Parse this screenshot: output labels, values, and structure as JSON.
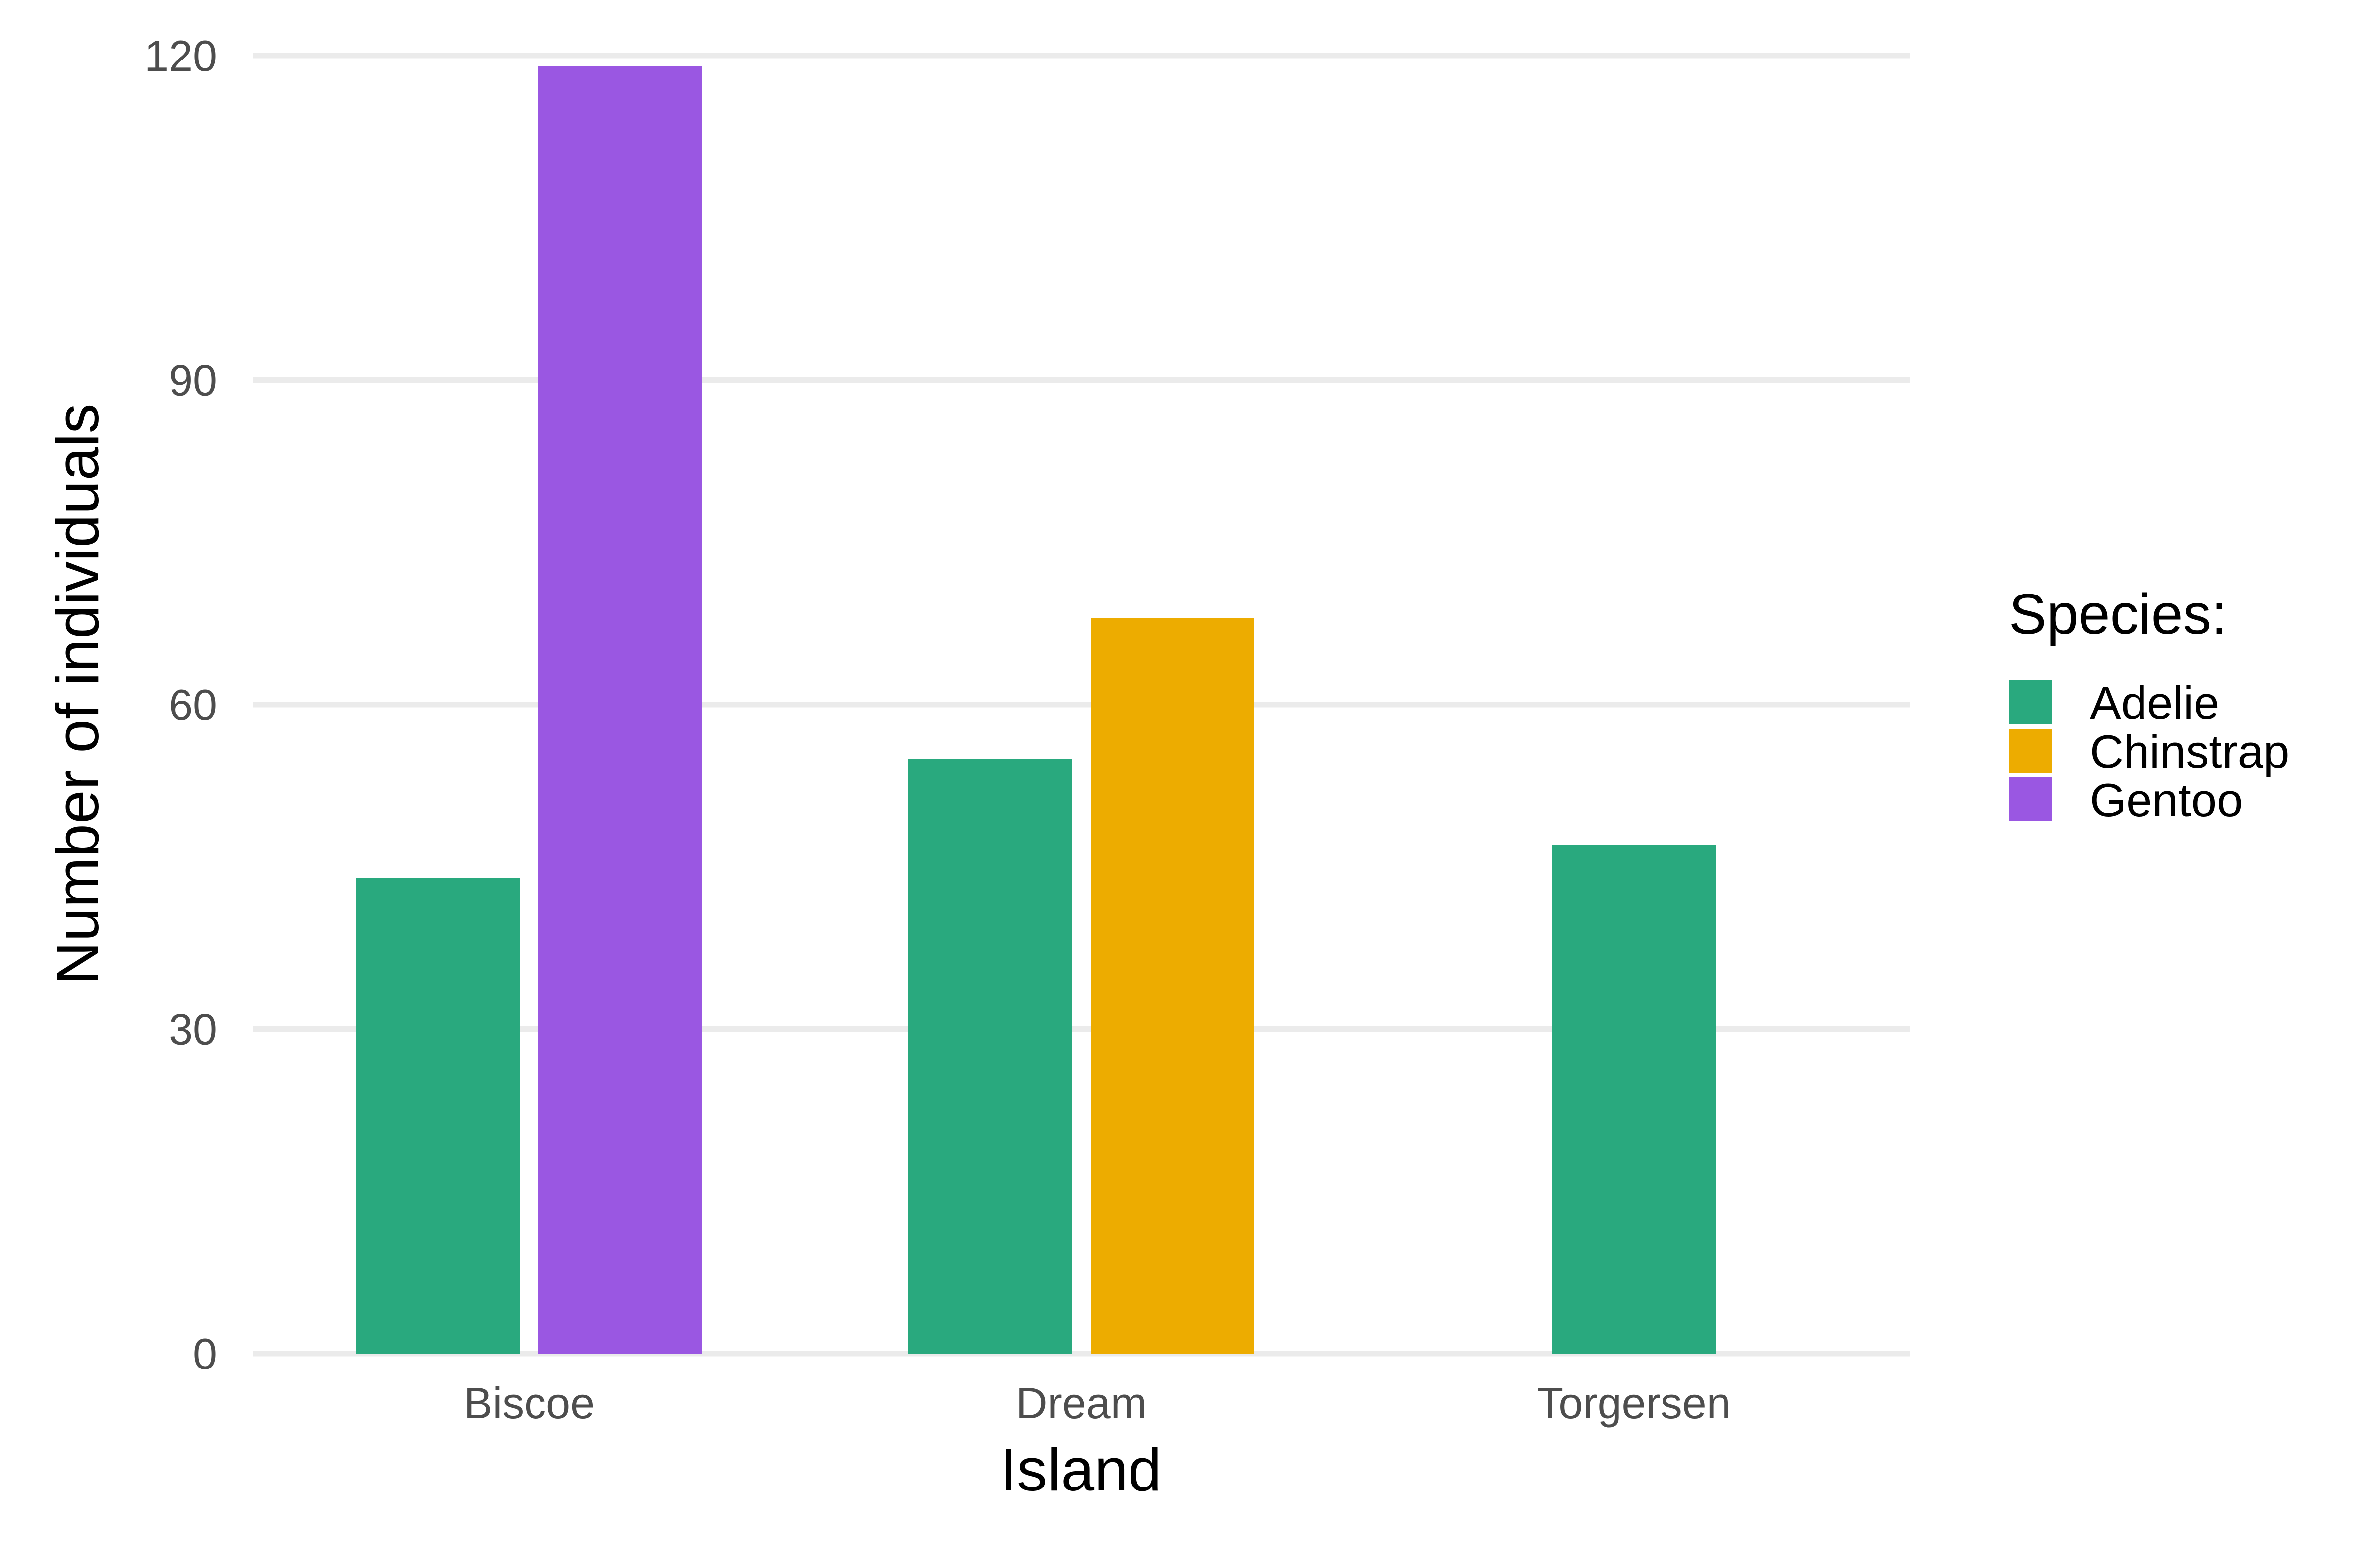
{
  "chart_data": {
    "type": "bar",
    "title": "",
    "xlabel": "Island",
    "ylabel": "Number of individuals",
    "categories": [
      "Biscoe",
      "Dream",
      "Torgersen"
    ],
    "ylim": [
      0,
      120
    ],
    "yticks": [
      0,
      30,
      60,
      90,
      120
    ],
    "grid": true,
    "legend": {
      "title": "Species:",
      "placement": "right"
    },
    "series": [
      {
        "name": "Adelie",
        "color": "#29a97e",
        "values": [
          44,
          55,
          47
        ]
      },
      {
        "name": "Chinstrap",
        "color": "#edac00",
        "values": [
          0,
          68,
          0
        ]
      },
      {
        "name": "Gentoo",
        "color": "#9a57e2",
        "values": [
          119,
          0,
          0
        ]
      }
    ]
  }
}
